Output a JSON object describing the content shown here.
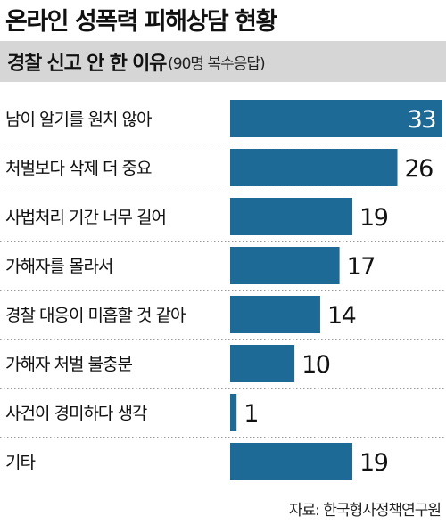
{
  "title": "온라인 성폭력 피해상담 현황",
  "subtitle": "경찰 신고 안 한 이유",
  "subtitle_note": "(90명 복수응답)",
  "source": "자료: 한국형사정책연구원",
  "colors": {
    "bar": "#1e6a96",
    "subtitle_bg": "#d6d6d6",
    "divider": "#9a9a9a",
    "label_inside": "#ffffff",
    "label_outside": "#111111"
  },
  "chart_data": {
    "type": "bar",
    "orientation": "horizontal",
    "categories": [
      "남이 알기를 원치 않아",
      "처벌보다 삭제 더 중요",
      "사법처리 기간 너무 길어",
      "가해자를 몰라서",
      "경찰 대응이 미흡할 것 같아",
      "가해자 처벌 불충분",
      "사건이 경미하다 생각",
      "기타"
    ],
    "values": [
      33,
      26,
      19,
      17,
      14,
      10,
      1,
      19
    ],
    "title": "경찰 신고 안 한 이유",
    "xlabel": "",
    "ylabel": "",
    "xlim": [
      0,
      33
    ],
    "grid": false,
    "legend": "none"
  }
}
